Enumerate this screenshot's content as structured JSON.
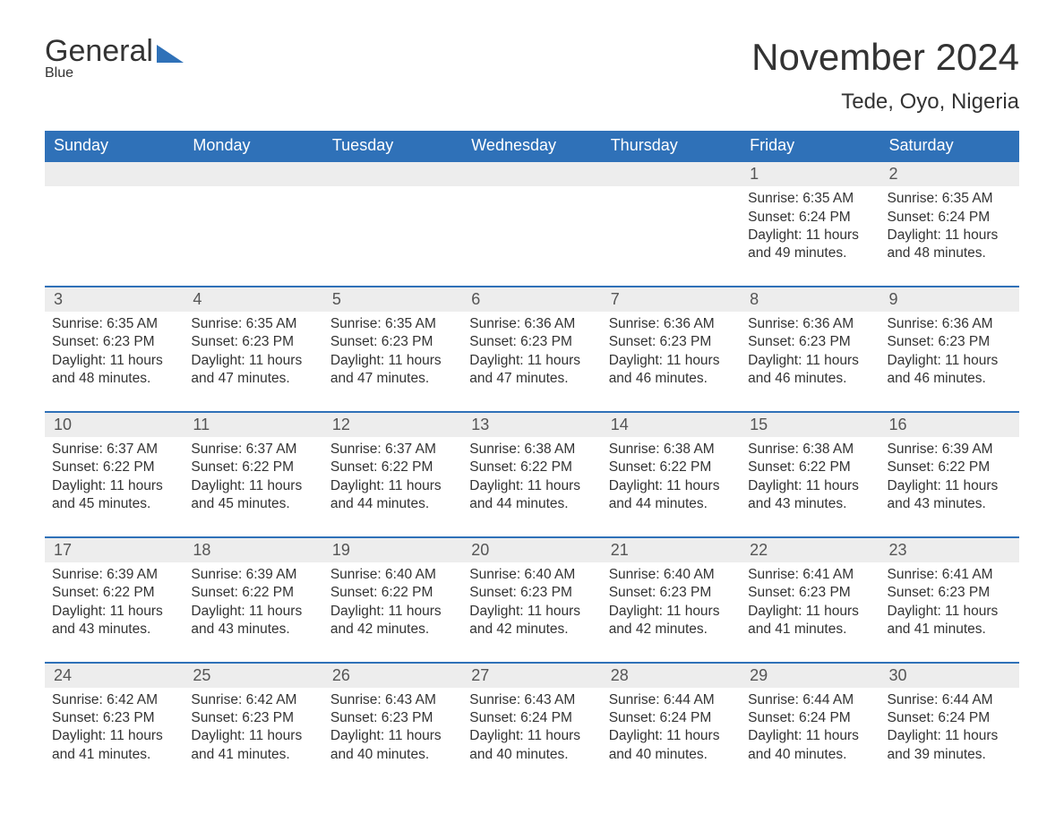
{
  "brand": {
    "general": "General",
    "blue": "Blue"
  },
  "header": {
    "month_title": "November 2024",
    "location": "Tede, Oyo, Nigeria"
  },
  "colors": {
    "header_bg": "#2f71b8",
    "header_text": "#ffffff",
    "day_row_bg": "#ededed",
    "day_border": "#2f71b8",
    "text": "#333333",
    "brand_blue": "#2f71b8"
  },
  "weekdays": [
    "Sunday",
    "Monday",
    "Tuesday",
    "Wednesday",
    "Thursday",
    "Friday",
    "Saturday"
  ],
  "weeks": [
    [
      null,
      null,
      null,
      null,
      null,
      {
        "n": "1",
        "sr": "Sunrise: 6:35 AM",
        "ss": "Sunset: 6:24 PM",
        "d1": "Daylight: 11 hours",
        "d2": "and 49 minutes."
      },
      {
        "n": "2",
        "sr": "Sunrise: 6:35 AM",
        "ss": "Sunset: 6:24 PM",
        "d1": "Daylight: 11 hours",
        "d2": "and 48 minutes."
      }
    ],
    [
      {
        "n": "3",
        "sr": "Sunrise: 6:35 AM",
        "ss": "Sunset: 6:23 PM",
        "d1": "Daylight: 11 hours",
        "d2": "and 48 minutes."
      },
      {
        "n": "4",
        "sr": "Sunrise: 6:35 AM",
        "ss": "Sunset: 6:23 PM",
        "d1": "Daylight: 11 hours",
        "d2": "and 47 minutes."
      },
      {
        "n": "5",
        "sr": "Sunrise: 6:35 AM",
        "ss": "Sunset: 6:23 PM",
        "d1": "Daylight: 11 hours",
        "d2": "and 47 minutes."
      },
      {
        "n": "6",
        "sr": "Sunrise: 6:36 AM",
        "ss": "Sunset: 6:23 PM",
        "d1": "Daylight: 11 hours",
        "d2": "and 47 minutes."
      },
      {
        "n": "7",
        "sr": "Sunrise: 6:36 AM",
        "ss": "Sunset: 6:23 PM",
        "d1": "Daylight: 11 hours",
        "d2": "and 46 minutes."
      },
      {
        "n": "8",
        "sr": "Sunrise: 6:36 AM",
        "ss": "Sunset: 6:23 PM",
        "d1": "Daylight: 11 hours",
        "d2": "and 46 minutes."
      },
      {
        "n": "9",
        "sr": "Sunrise: 6:36 AM",
        "ss": "Sunset: 6:23 PM",
        "d1": "Daylight: 11 hours",
        "d2": "and 46 minutes."
      }
    ],
    [
      {
        "n": "10",
        "sr": "Sunrise: 6:37 AM",
        "ss": "Sunset: 6:22 PM",
        "d1": "Daylight: 11 hours",
        "d2": "and 45 minutes."
      },
      {
        "n": "11",
        "sr": "Sunrise: 6:37 AM",
        "ss": "Sunset: 6:22 PM",
        "d1": "Daylight: 11 hours",
        "d2": "and 45 minutes."
      },
      {
        "n": "12",
        "sr": "Sunrise: 6:37 AM",
        "ss": "Sunset: 6:22 PM",
        "d1": "Daylight: 11 hours",
        "d2": "and 44 minutes."
      },
      {
        "n": "13",
        "sr": "Sunrise: 6:38 AM",
        "ss": "Sunset: 6:22 PM",
        "d1": "Daylight: 11 hours",
        "d2": "and 44 minutes."
      },
      {
        "n": "14",
        "sr": "Sunrise: 6:38 AM",
        "ss": "Sunset: 6:22 PM",
        "d1": "Daylight: 11 hours",
        "d2": "and 44 minutes."
      },
      {
        "n": "15",
        "sr": "Sunrise: 6:38 AM",
        "ss": "Sunset: 6:22 PM",
        "d1": "Daylight: 11 hours",
        "d2": "and 43 minutes."
      },
      {
        "n": "16",
        "sr": "Sunrise: 6:39 AM",
        "ss": "Sunset: 6:22 PM",
        "d1": "Daylight: 11 hours",
        "d2": "and 43 minutes."
      }
    ],
    [
      {
        "n": "17",
        "sr": "Sunrise: 6:39 AM",
        "ss": "Sunset: 6:22 PM",
        "d1": "Daylight: 11 hours",
        "d2": "and 43 minutes."
      },
      {
        "n": "18",
        "sr": "Sunrise: 6:39 AM",
        "ss": "Sunset: 6:22 PM",
        "d1": "Daylight: 11 hours",
        "d2": "and 43 minutes."
      },
      {
        "n": "19",
        "sr": "Sunrise: 6:40 AM",
        "ss": "Sunset: 6:22 PM",
        "d1": "Daylight: 11 hours",
        "d2": "and 42 minutes."
      },
      {
        "n": "20",
        "sr": "Sunrise: 6:40 AM",
        "ss": "Sunset: 6:23 PM",
        "d1": "Daylight: 11 hours",
        "d2": "and 42 minutes."
      },
      {
        "n": "21",
        "sr": "Sunrise: 6:40 AM",
        "ss": "Sunset: 6:23 PM",
        "d1": "Daylight: 11 hours",
        "d2": "and 42 minutes."
      },
      {
        "n": "22",
        "sr": "Sunrise: 6:41 AM",
        "ss": "Sunset: 6:23 PM",
        "d1": "Daylight: 11 hours",
        "d2": "and 41 minutes."
      },
      {
        "n": "23",
        "sr": "Sunrise: 6:41 AM",
        "ss": "Sunset: 6:23 PM",
        "d1": "Daylight: 11 hours",
        "d2": "and 41 minutes."
      }
    ],
    [
      {
        "n": "24",
        "sr": "Sunrise: 6:42 AM",
        "ss": "Sunset: 6:23 PM",
        "d1": "Daylight: 11 hours",
        "d2": "and 41 minutes."
      },
      {
        "n": "25",
        "sr": "Sunrise: 6:42 AM",
        "ss": "Sunset: 6:23 PM",
        "d1": "Daylight: 11 hours",
        "d2": "and 41 minutes."
      },
      {
        "n": "26",
        "sr": "Sunrise: 6:43 AM",
        "ss": "Sunset: 6:23 PM",
        "d1": "Daylight: 11 hours",
        "d2": "and 40 minutes."
      },
      {
        "n": "27",
        "sr": "Sunrise: 6:43 AM",
        "ss": "Sunset: 6:24 PM",
        "d1": "Daylight: 11 hours",
        "d2": "and 40 minutes."
      },
      {
        "n": "28",
        "sr": "Sunrise: 6:44 AM",
        "ss": "Sunset: 6:24 PM",
        "d1": "Daylight: 11 hours",
        "d2": "and 40 minutes."
      },
      {
        "n": "29",
        "sr": "Sunrise: 6:44 AM",
        "ss": "Sunset: 6:24 PM",
        "d1": "Daylight: 11 hours",
        "d2": "and 40 minutes."
      },
      {
        "n": "30",
        "sr": "Sunrise: 6:44 AM",
        "ss": "Sunset: 6:24 PM",
        "d1": "Daylight: 11 hours",
        "d2": "and 39 minutes."
      }
    ]
  ]
}
